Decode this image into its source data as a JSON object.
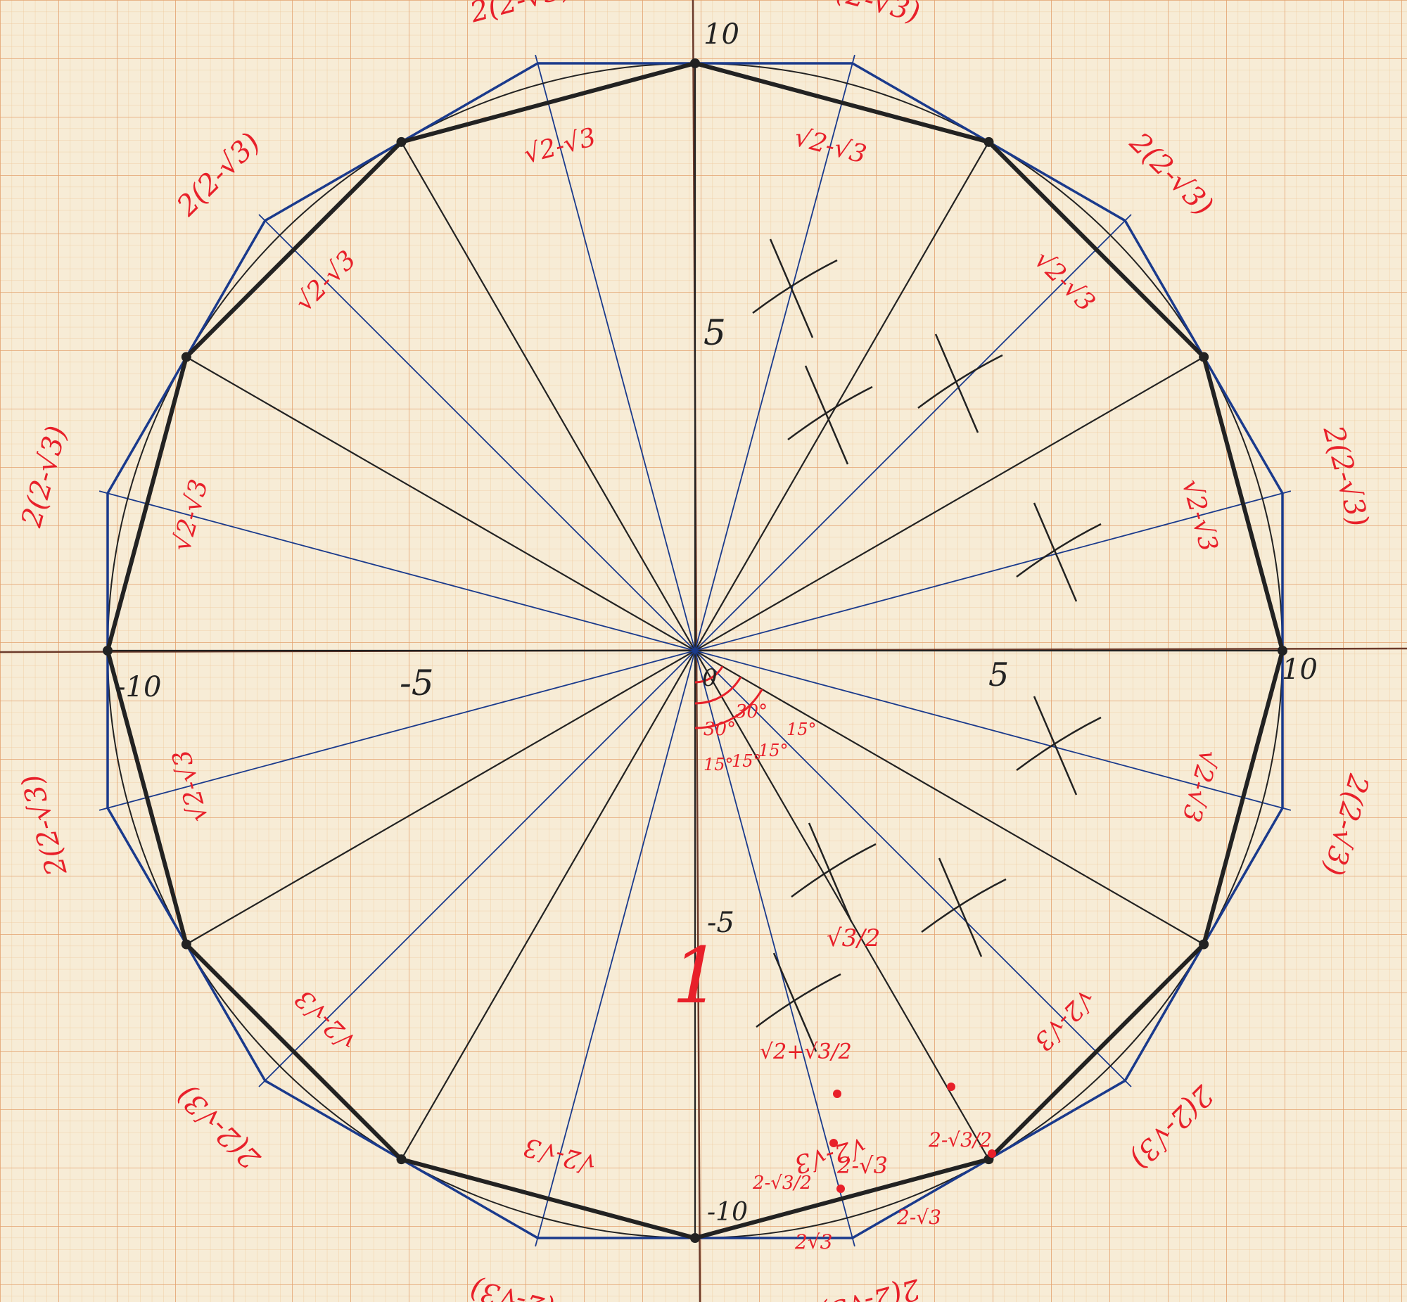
{
  "axis_labels": {
    "x_pos": "5",
    "x_neg": "-5",
    "x_pos_end": "10",
    "x_neg_end": "-10",
    "y_pos": "5",
    "y_neg": "-5",
    "y_pos_end": "10",
    "y_neg_end": "-10",
    "origin": "0"
  },
  "labels": {
    "outer_side": "2(2-√3)",
    "inner_side": "√2-√3",
    "unit_marker": "1",
    "half_sqrt3": "√3/2",
    "half_side": "√2+√3/2",
    "half_minus": "2-√3/2",
    "two_minus": "2-√3",
    "two_sqrt3": "2√3",
    "angle_30": "30°",
    "angle_15": "15°"
  },
  "colors": {
    "paper": "#f7ecd6",
    "grid_minor": "#f0c89a",
    "grid_major": "#e3a26e",
    "ink_black": "#222222",
    "ink_blue": "#1a3a8c",
    "ink_red": "#e8202a"
  }
}
